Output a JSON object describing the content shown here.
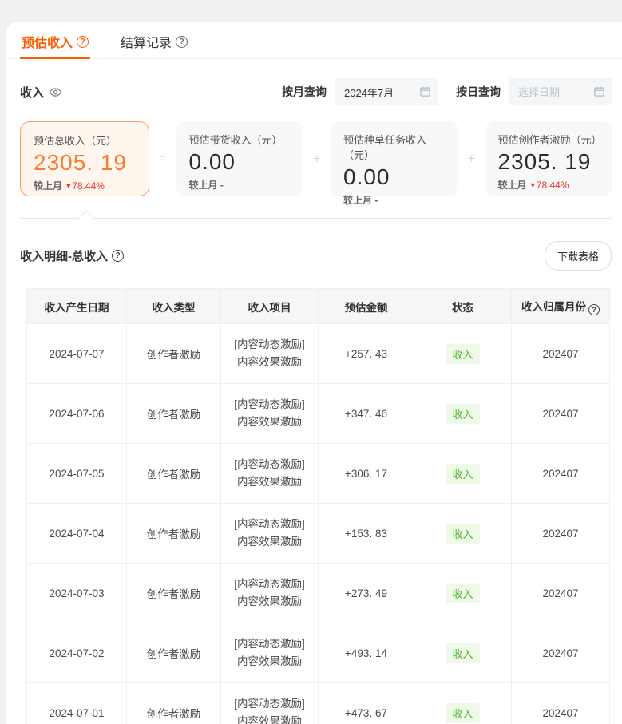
{
  "colors": {
    "accent_orange": "#ff5c00",
    "value_orange": "#ff7a33",
    "card_highlight_bg": "#fff6ee",
    "card_highlight_border": "#ff9f62",
    "down_red": "#f5332b",
    "status_green": "#54b32a",
    "status_green_bg": "#eef9e8"
  },
  "tabs": [
    {
      "label": "预估收入",
      "active": true
    },
    {
      "label": "结算记录",
      "active": false
    }
  ],
  "filters": {
    "income_label": "收入",
    "month_label": "按月查询",
    "month_value": "2024年7月",
    "day_label": "按日查询",
    "day_placeholder": "选择日期"
  },
  "cards": [
    {
      "title": "预估总收入（元）",
      "value": "2305. 19",
      "compare_label": "较上月",
      "trend": "down",
      "compare_value": "78.44%"
    },
    {
      "title": "预估带货收入（元）",
      "value": "0.00",
      "compare_label": "较上月",
      "trend": "none",
      "compare_value": "-"
    },
    {
      "title": "预估种草任务收入（元）",
      "value": "0.00",
      "compare_label": "较上月",
      "trend": "none",
      "compare_value": "-"
    },
    {
      "title": "预估创作者激励（元）",
      "value": "2305. 19",
      "compare_label": "较上月",
      "trend": "down",
      "compare_value": "78.44%"
    }
  ],
  "operators": {
    "eq": "=",
    "plus1": "+",
    "plus2": "+"
  },
  "down_triangle": "▼",
  "section": {
    "title": "收入明细-总收入",
    "download_label": "下载表格"
  },
  "table": {
    "headers": [
      "收入产生日期",
      "收入类型",
      "收入项目",
      "预估金额",
      "状态",
      "收入归属月份"
    ],
    "rows": [
      {
        "date": "2024-07-07",
        "type": "创作者激励",
        "project_line1": "[内容动态激励]",
        "project_line2": "内容效果激励",
        "amount": "+257. 43",
        "status": "收入",
        "month": "202407"
      },
      {
        "date": "2024-07-06",
        "type": "创作者激励",
        "project_line1": "[内容动态激励]",
        "project_line2": "内容效果激励",
        "amount": "+347. 46",
        "status": "收入",
        "month": "202407"
      },
      {
        "date": "2024-07-05",
        "type": "创作者激励",
        "project_line1": "[内容动态激励]",
        "project_line2": "内容效果激励",
        "amount": "+306. 17",
        "status": "收入",
        "month": "202407"
      },
      {
        "date": "2024-07-04",
        "type": "创作者激励",
        "project_line1": "[内容动态激励]",
        "project_line2": "内容效果激励",
        "amount": "+153. 83",
        "status": "收入",
        "month": "202407"
      },
      {
        "date": "2024-07-03",
        "type": "创作者激励",
        "project_line1": "[内容动态激励]",
        "project_line2": "内容效果激励",
        "amount": "+273. 49",
        "status": "收入",
        "month": "202407"
      },
      {
        "date": "2024-07-02",
        "type": "创作者激励",
        "project_line1": "[内容动态激励]",
        "project_line2": "内容效果激励",
        "amount": "+493. 14",
        "status": "收入",
        "month": "202407"
      },
      {
        "date": "2024-07-01",
        "type": "创作者激励",
        "project_line1": "[内容动态激励]",
        "project_line2": "内容效果激励",
        "amount": "+473. 67",
        "status": "收入",
        "month": "202407"
      }
    ]
  }
}
